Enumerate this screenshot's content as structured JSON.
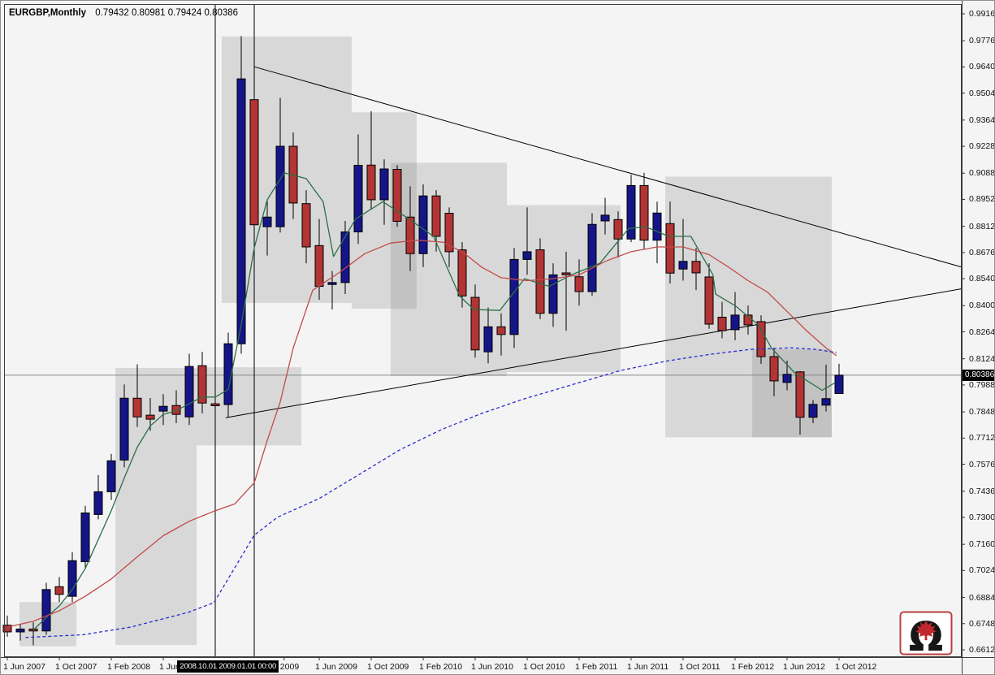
{
  "title": {
    "symbol_period": "EURGBP,Monthly",
    "ohlc_text": "0.79432 0.80981 0.79424 0.80386"
  },
  "colors": {
    "background": "#f4f4f4",
    "range_box": "rgba(118,118,118,0.22)",
    "bull_candle": "#151589",
    "bear_candle": "#b23434",
    "candle_border": "#000000",
    "ma_fast_green": "#2a7048",
    "ma_slow_red": "#c24a4a",
    "ma_long_blue": "#2b2bd0",
    "trendline": "#000000",
    "current_price_line": "#8a8a8a",
    "axis_text": "#111111",
    "highlight_bg": "#000000",
    "highlight_fg": "#ffffff",
    "frame": "#3c3c3c"
  },
  "price_axis": {
    "labels": [
      "0.99160",
      "0.97760",
      "0.96400",
      "0.95040",
      "0.93640",
      "0.92280",
      "0.90880",
      "0.89520",
      "0.88120",
      "0.86760",
      "0.85400",
      "0.84000",
      "0.82640",
      "0.81240",
      "0.79880",
      "0.78480",
      "0.77120",
      "0.75760",
      "0.74360",
      "0.73000",
      "0.71600",
      "0.70240",
      "0.68840",
      "0.67480",
      "0.66120"
    ],
    "current_label": "0.80386"
  },
  "time_axis": {
    "labels": [
      {
        "text": "1 Jun 2007",
        "m": 0
      },
      {
        "text": "1 Oct 2007",
        "m": 4
      },
      {
        "text": "1 Feb 2008",
        "m": 8
      },
      {
        "text": "1 Jun",
        "m": 12
      },
      {
        "text": "2009",
        "m": 21.3
      },
      {
        "text": "1 Jun 2009",
        "m": 24
      },
      {
        "text": "1 Oct 2009",
        "m": 28
      },
      {
        "text": "1 Feb 2010",
        "m": 32
      },
      {
        "text": "1 Jun 2010",
        "m": 36
      },
      {
        "text": "1 Oct 2010",
        "m": 40
      },
      {
        "text": "1 Feb 2011",
        "m": 44
      },
      {
        "text": "1 Jun 2011",
        "m": 48
      },
      {
        "text": "1 Oct 2011",
        "m": 52
      },
      {
        "text": "1 Feb 2012",
        "m": 56
      },
      {
        "text": "1 Jun 2012",
        "m": 60
      },
      {
        "text": "1 Oct 2012",
        "m": 64
      }
    ],
    "highlight": {
      "text": "2008.10.01 2009.01.01 00:00",
      "m": 13.4
    }
  },
  "chart_data": {
    "type": "candlestick",
    "symbol": "EURGBP",
    "timeframe": "Monthly",
    "title": "EURGBP,Monthly 0.79432 0.80981 0.79424 0.80386",
    "x_start": "2007-06",
    "x_end": "2012-10",
    "y_axis": {
      "min": 0.6612,
      "max": 0.9916
    },
    "current_bar": {
      "open": 0.79432,
      "high": 0.80981,
      "low": 0.79424,
      "close": 0.80386
    },
    "candles_ohlc": [
      [
        0.674,
        0.679,
        0.668,
        0.6705
      ],
      [
        0.6705,
        0.6745,
        0.666,
        0.672
      ],
      [
        0.672,
        0.6755,
        0.6635,
        0.671
      ],
      [
        0.671,
        0.696,
        0.669,
        0.6925
      ],
      [
        0.694,
        0.699,
        0.686,
        0.69
      ],
      [
        0.689,
        0.712,
        0.686,
        0.7075
      ],
      [
        0.707,
        0.736,
        0.704,
        0.7323
      ],
      [
        0.7315,
        0.752,
        0.729,
        0.7433
      ],
      [
        0.7433,
        0.763,
        0.739,
        0.7594
      ],
      [
        0.7598,
        0.799,
        0.756,
        0.7919
      ],
      [
        0.7919,
        0.8095,
        0.777,
        0.7822
      ],
      [
        0.7831,
        0.792,
        0.775,
        0.781
      ],
      [
        0.7852,
        0.794,
        0.778,
        0.7877
      ],
      [
        0.7881,
        0.796,
        0.779,
        0.7835
      ],
      [
        0.7822,
        0.815,
        0.778,
        0.8084
      ],
      [
        0.8088,
        0.816,
        0.784,
        0.7894
      ],
      [
        0.789,
        0.795,
        0.77,
        0.788
      ],
      [
        0.7886,
        0.826,
        0.782,
        0.8202
      ],
      [
        0.8202,
        0.98,
        0.815,
        0.9578
      ],
      [
        0.947,
        0.953,
        0.862,
        0.882
      ],
      [
        0.881,
        0.895,
        0.866,
        0.886
      ],
      [
        0.881,
        0.948,
        0.878,
        0.9228
      ],
      [
        0.9228,
        0.93,
        0.885,
        0.8933
      ],
      [
        0.893,
        0.9,
        0.862,
        0.8705
      ],
      [
        0.8712,
        0.885,
        0.843,
        0.85
      ],
      [
        0.851,
        0.858,
        0.838,
        0.852
      ],
      [
        0.852,
        0.884,
        0.846,
        0.8783
      ],
      [
        0.8783,
        0.929,
        0.872,
        0.9129
      ],
      [
        0.913,
        0.941,
        0.89,
        0.895
      ],
      [
        0.895,
        0.916,
        0.882,
        0.911
      ],
      [
        0.9108,
        0.913,
        0.881,
        0.8838
      ],
      [
        0.886,
        0.902,
        0.858,
        0.867
      ],
      [
        0.867,
        0.903,
        0.86,
        0.897
      ],
      [
        0.897,
        0.9,
        0.868,
        0.876
      ],
      [
        0.888,
        0.891,
        0.86,
        0.868
      ],
      [
        0.869,
        0.873,
        0.839,
        0.845
      ],
      [
        0.8443,
        0.851,
        0.813,
        0.817
      ],
      [
        0.816,
        0.839,
        0.81,
        0.829
      ],
      [
        0.829,
        0.836,
        0.814,
        0.825
      ],
      [
        0.825,
        0.87,
        0.818,
        0.864
      ],
      [
        0.864,
        0.891,
        0.856,
        0.868
      ],
      [
        0.869,
        0.875,
        0.833,
        0.836
      ],
      [
        0.836,
        0.862,
        0.829,
        0.856
      ],
      [
        0.857,
        0.868,
        0.827,
        0.856
      ],
      [
        0.855,
        0.864,
        0.84,
        0.8473
      ],
      [
        0.8473,
        0.888,
        0.845,
        0.8822
      ],
      [
        0.884,
        0.896,
        0.877,
        0.887
      ],
      [
        0.8847,
        0.889,
        0.865,
        0.8746
      ],
      [
        0.8746,
        0.908,
        0.873,
        0.9024
      ],
      [
        0.9024,
        0.909,
        0.869,
        0.874
      ],
      [
        0.874,
        0.894,
        0.862,
        0.8881
      ],
      [
        0.8826,
        0.894,
        0.8515,
        0.8569
      ],
      [
        0.859,
        0.885,
        0.853,
        0.863
      ],
      [
        0.863,
        0.87,
        0.848,
        0.857
      ],
      [
        0.8549,
        0.862,
        0.828,
        0.8304
      ],
      [
        0.834,
        0.842,
        0.823,
        0.827
      ],
      [
        0.8275,
        0.847,
        0.822,
        0.8351
      ],
      [
        0.8351,
        0.84,
        0.825,
        0.83
      ],
      [
        0.8317,
        0.835,
        0.8098,
        0.8135
      ],
      [
        0.8135,
        0.818,
        0.7929,
        0.8009
      ],
      [
        0.8001,
        0.8114,
        0.796,
        0.8043
      ],
      [
        0.8056,
        0.806,
        0.773,
        0.782
      ],
      [
        0.782,
        0.791,
        0.779,
        0.7887
      ],
      [
        0.7883,
        0.8093,
        0.785,
        0.7917
      ],
      [
        0.79432,
        0.80981,
        0.79424,
        0.80386
      ]
    ],
    "series": [
      {
        "name": "ma-fast-green",
        "style": "solid",
        "points": [
          [
            2,
            0.6715
          ],
          [
            3,
            0.678
          ],
          [
            4,
            0.684
          ],
          [
            5,
            0.6925
          ],
          [
            6,
            0.7035
          ],
          [
            7,
            0.7185
          ],
          [
            8,
            0.7335
          ],
          [
            9,
            0.7505
          ],
          [
            10,
            0.7665
          ],
          [
            11,
            0.7775
          ],
          [
            12,
            0.7835
          ],
          [
            13,
            0.7855
          ],
          [
            14,
            0.789
          ],
          [
            15,
            0.7925
          ],
          [
            16,
            0.7925
          ],
          [
            17,
            0.7965
          ],
          [
            18,
            0.83
          ],
          [
            19,
            0.87
          ],
          [
            20,
            0.895
          ],
          [
            21.3,
            0.909
          ],
          [
            23,
            0.906
          ],
          [
            24.3,
            0.894
          ],
          [
            25.1,
            0.8655
          ],
          [
            26.8,
            0.885
          ],
          [
            28.9,
            0.894
          ],
          [
            30.9,
            0.885
          ],
          [
            32.8,
            0.876
          ],
          [
            34.8,
            0.845
          ],
          [
            35.9,
            0.838
          ],
          [
            37.9,
            0.8375
          ],
          [
            39.8,
            0.854
          ],
          [
            41.7,
            0.85
          ],
          [
            43.4,
            0.856
          ],
          [
            45.6,
            0.862
          ],
          [
            47.8,
            0.88
          ],
          [
            49.1,
            0.881
          ],
          [
            50.9,
            0.876
          ],
          [
            52.6,
            0.876
          ],
          [
            54.3,
            0.856
          ],
          [
            54.5,
            0.846
          ],
          [
            56,
            0.84
          ],
          [
            57.8,
            0.83
          ],
          [
            58.8,
            0.818
          ],
          [
            60.6,
            0.805
          ],
          [
            62.7,
            0.796
          ],
          [
            63.7,
            0.8
          ]
        ]
      },
      {
        "name": "ma-slow-red",
        "style": "solid",
        "points": [
          [
            0,
            0.673
          ],
          [
            2,
            0.676
          ],
          [
            4,
            0.6815
          ],
          [
            6,
            0.689
          ],
          [
            8,
            0.698
          ],
          [
            10,
            0.7095
          ],
          [
            12,
            0.7205
          ],
          [
            14,
            0.728
          ],
          [
            16,
            0.7335
          ],
          [
            17.5,
            0.737
          ],
          [
            19,
            0.748
          ],
          [
            20,
            0.77
          ],
          [
            21,
            0.79
          ],
          [
            22,
            0.818
          ],
          [
            23.5,
            0.848
          ],
          [
            25.5,
            0.857
          ],
          [
            27.5,
            0.867
          ],
          [
            29.5,
            0.8725
          ],
          [
            31.5,
            0.874
          ],
          [
            33.5,
            0.873
          ],
          [
            35,
            0.868
          ],
          [
            36.5,
            0.86
          ],
          [
            38,
            0.8545
          ],
          [
            40,
            0.853
          ],
          [
            42,
            0.854
          ],
          [
            44,
            0.856
          ],
          [
            46,
            0.863
          ],
          [
            48,
            0.868
          ],
          [
            50,
            0.8705
          ],
          [
            52,
            0.8705
          ],
          [
            54,
            0.8665
          ],
          [
            55.5,
            0.86
          ],
          [
            57,
            0.853
          ],
          [
            58.5,
            0.847
          ],
          [
            60,
            0.837
          ],
          [
            61.5,
            0.827
          ],
          [
            63,
            0.818
          ],
          [
            63.8,
            0.814
          ]
        ]
      },
      {
        "name": "ma-long-blue",
        "style": "dashed",
        "points": [
          [
            1.4,
            0.6676
          ],
          [
            5.8,
            0.669
          ],
          [
            9.5,
            0.673
          ],
          [
            13.9,
            0.6806
          ],
          [
            15.9,
            0.6857
          ],
          [
            19,
            0.7208
          ],
          [
            20.8,
            0.7301
          ],
          [
            24,
            0.7398
          ],
          [
            27.1,
            0.7524
          ],
          [
            30.2,
            0.7651
          ],
          [
            33.4,
            0.7756
          ],
          [
            36.5,
            0.784
          ],
          [
            39.6,
            0.7912
          ],
          [
            43.4,
            0.7988
          ],
          [
            47.2,
            0.8063
          ],
          [
            50.9,
            0.8114
          ],
          [
            54.1,
            0.8147
          ],
          [
            57.2,
            0.8173
          ],
          [
            60.3,
            0.8181
          ],
          [
            62.2,
            0.8173
          ],
          [
            63.8,
            0.8156
          ]
        ]
      }
    ],
    "trendlines": [
      {
        "name": "upper-descending",
        "m1": 19.0,
        "p1": 0.9641,
        "m2": 73.4,
        "p2": 0.8601
      },
      {
        "name": "lower-ascending",
        "m1": 16.8,
        "p1": 0.7818,
        "m2": 73.4,
        "p2": 0.8487
      }
    ],
    "vertical_lines": [
      {
        "label": "2008.10.01",
        "m": 16
      },
      {
        "label": "2009.01.01 00:00",
        "m": 19
      }
    ],
    "horizontal_line": {
      "label": "0.80386",
      "price": 0.80386
    },
    "range_boxes": [
      {
        "m1": 1.25,
        "m2": 5.63,
        "p1": 0.663,
        "p2": 0.686
      },
      {
        "m1": 8.63,
        "m2": 14.88,
        "p1": 0.6637,
        "p2": 0.8076
      },
      {
        "m1": 14.88,
        "m2": 22.94,
        "p1": 0.7674,
        "p2": 0.808
      },
      {
        "m1": 16.81,
        "m2": 26.81,
        "p1": 0.8414,
        "p2": 0.9798
      },
      {
        "m1": 26.81,
        "m2": 31.81,
        "p1": 0.8384,
        "p2": 0.9404
      },
      {
        "m1": 29.81,
        "m2": 38.75,
        "p1": 0.8034,
        "p2": 0.9142
      },
      {
        "m1": 38.75,
        "m2": 47.5,
        "p1": 0.8055,
        "p2": 0.8922
      },
      {
        "m1": 50.94,
        "m2": 63.75,
        "p1": 0.7716,
        "p2": 0.907
      },
      {
        "m1": 57.63,
        "m2": 63.75,
        "p1": 0.7716,
        "p2": 0.8173
      }
    ]
  },
  "logo": {
    "name": "omega-maple-logo",
    "glyph": "Ω"
  }
}
